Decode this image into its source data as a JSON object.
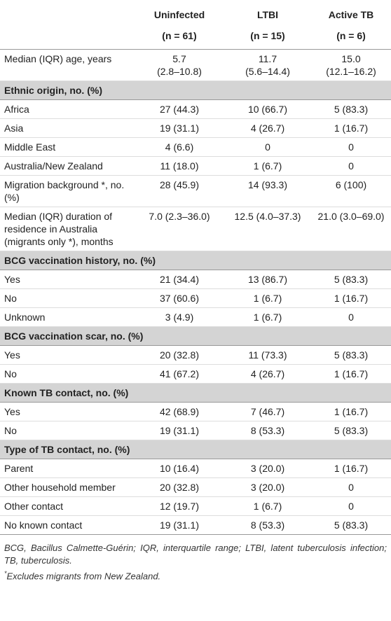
{
  "table": {
    "columns": [
      "Uninfected",
      "LTBI",
      "Active TB"
    ],
    "n": [
      "(n = 61)",
      "(n = 15)",
      "(n = 6)"
    ],
    "rows": [
      {
        "label": "Median (IQR) age, years",
        "cells": [
          [
            "5.7",
            "(2.8–10.8)"
          ],
          [
            "11.7",
            "(5.6–14.4)"
          ],
          [
            "15.0",
            "(12.1–16.2)"
          ]
        ]
      }
    ],
    "sections": [
      {
        "heading": "Ethnic origin, no. (%)",
        "rows": [
          {
            "label": "Africa",
            "cells": [
              "27 (44.3)",
              "10 (66.7)",
              "5 (83.3)"
            ]
          },
          {
            "label": "Asia",
            "cells": [
              "19 (31.1)",
              "4 (26.7)",
              "1 (16.7)"
            ]
          },
          {
            "label": "Middle East",
            "cells": [
              "4 (6.6)",
              "0",
              "0"
            ]
          },
          {
            "label": "Australia/New Zealand",
            "cells": [
              "11 (18.0)",
              "1 (6.7)",
              "0"
            ]
          },
          {
            "label": "Migration background *, no. (%)",
            "cells": [
              "28 (45.9)",
              "14 (93.3)",
              "6 (100)"
            ]
          },
          {
            "label": "Median (IQR) duration of residence in Australia (migrants only *), months",
            "cells": [
              "7.0 (2.3–36.0)",
              "12.5 (4.0–37.3)",
              "21.0 (3.0–69.0)"
            ]
          }
        ]
      },
      {
        "heading": "BCG vaccination history, no. (%)",
        "rows": [
          {
            "label": "Yes",
            "cells": [
              "21 (34.4)",
              "13 (86.7)",
              "5 (83.3)"
            ]
          },
          {
            "label": "No",
            "cells": [
              "37 (60.6)",
              "1 (6.7)",
              "1 (16.7)"
            ]
          },
          {
            "label": "Unknown",
            "cells": [
              "3 (4.9)",
              "1 (6.7)",
              "0"
            ]
          }
        ]
      },
      {
        "heading": "BCG vaccination scar, no. (%)",
        "rows": [
          {
            "label": "Yes",
            "cells": [
              "20 (32.8)",
              "11 (73.3)",
              "5 (83.3)"
            ]
          },
          {
            "label": "No",
            "cells": [
              "41 (67.2)",
              "4 (26.7)",
              "1 (16.7)"
            ]
          }
        ]
      },
      {
        "heading": "Known TB contact, no. (%)",
        "rows": [
          {
            "label": "Yes",
            "cells": [
              "42 (68.9)",
              "7 (46.7)",
              "1 (16.7)"
            ]
          },
          {
            "label": "No",
            "cells": [
              "19 (31.1)",
              "8 (53.3)",
              "5 (83.3)"
            ]
          }
        ]
      },
      {
        "heading": "Type of TB contact, no. (%)",
        "rows": [
          {
            "label": "Parent",
            "cells": [
              "10 (16.4)",
              "3 (20.0)",
              "1 (16.7)"
            ]
          },
          {
            "label": "Other household member",
            "cells": [
              "20 (32.8)",
              "3 (20.0)",
              "0"
            ]
          },
          {
            "label": "Other contact",
            "cells": [
              "12 (19.7)",
              "1 (6.7)",
              "0"
            ]
          },
          {
            "label": "No known contact",
            "cells": [
              "19 (31.1)",
              "8 (53.3)",
              "5 (83.3)"
            ]
          }
        ]
      }
    ],
    "footnotes": {
      "abbreviations": "BCG, Bacillus Calmette-Guérin; IQR, interquartile range; LTBI, latent tuberculosis infection; TB, tuberculosis.",
      "marker": "*",
      "note": "Excludes migrants from New Zealand."
    }
  }
}
